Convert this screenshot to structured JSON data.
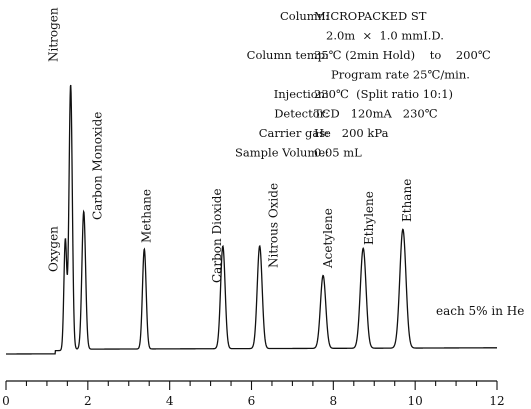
{
  "chart_data": {
    "type": "line",
    "xlim": [
      0,
      12
    ],
    "xticks": [
      "0",
      "2",
      "4",
      "6",
      "8",
      "10",
      "12"
    ],
    "minor_tick_step": 0.5,
    "grid": false,
    "peaks": [
      {
        "name": "Oxygen",
        "x": 1.45,
        "height": 0.41,
        "width": 0.035
      },
      {
        "name": "Nitrogen",
        "x": 1.58,
        "height": 0.98,
        "width": 0.04
      },
      {
        "name": "Carbon Monoxide",
        "x": 1.9,
        "height": 0.51,
        "width": 0.045
      },
      {
        "name": "Methane",
        "x": 3.38,
        "height": 0.37,
        "width": 0.045
      },
      {
        "name": "Carbon Dioxide",
        "x": 5.3,
        "height": 0.38,
        "width": 0.055
      },
      {
        "name": "Nitrous Oxide",
        "x": 6.2,
        "height": 0.38,
        "width": 0.06
      },
      {
        "name": "Acetylene",
        "x": 7.75,
        "height": 0.27,
        "width": 0.065
      },
      {
        "name": "Ethylene",
        "x": 8.73,
        "height": 0.37,
        "width": 0.07
      },
      {
        "name": "Ethane",
        "x": 9.7,
        "height": 0.44,
        "width": 0.075
      }
    ],
    "conditions": [
      {
        "label": "Column:",
        "value": "MICROPACKED ST"
      },
      {
        "label": "",
        "value": "2.0m  ×  1.0 mmI.D."
      },
      {
        "label": "Column temp:",
        "value": "35℃ (2min Hold)    to    200℃"
      },
      {
        "label": "",
        "value": "Program rate 25℃/min."
      },
      {
        "label": "Injection:",
        "value": "230℃  (Split ratio 10:1)"
      },
      {
        "label": "Detector:",
        "value": "TCD   120mA   230℃"
      },
      {
        "label": "Carrier gas:",
        "value": "He   200 kPa"
      },
      {
        "label": "Sample Volume:",
        "value": "0.05 mL"
      }
    ],
    "note": "each 5% in He",
    "colors": {
      "trace": "#111111",
      "axis": "#111111"
    }
  }
}
